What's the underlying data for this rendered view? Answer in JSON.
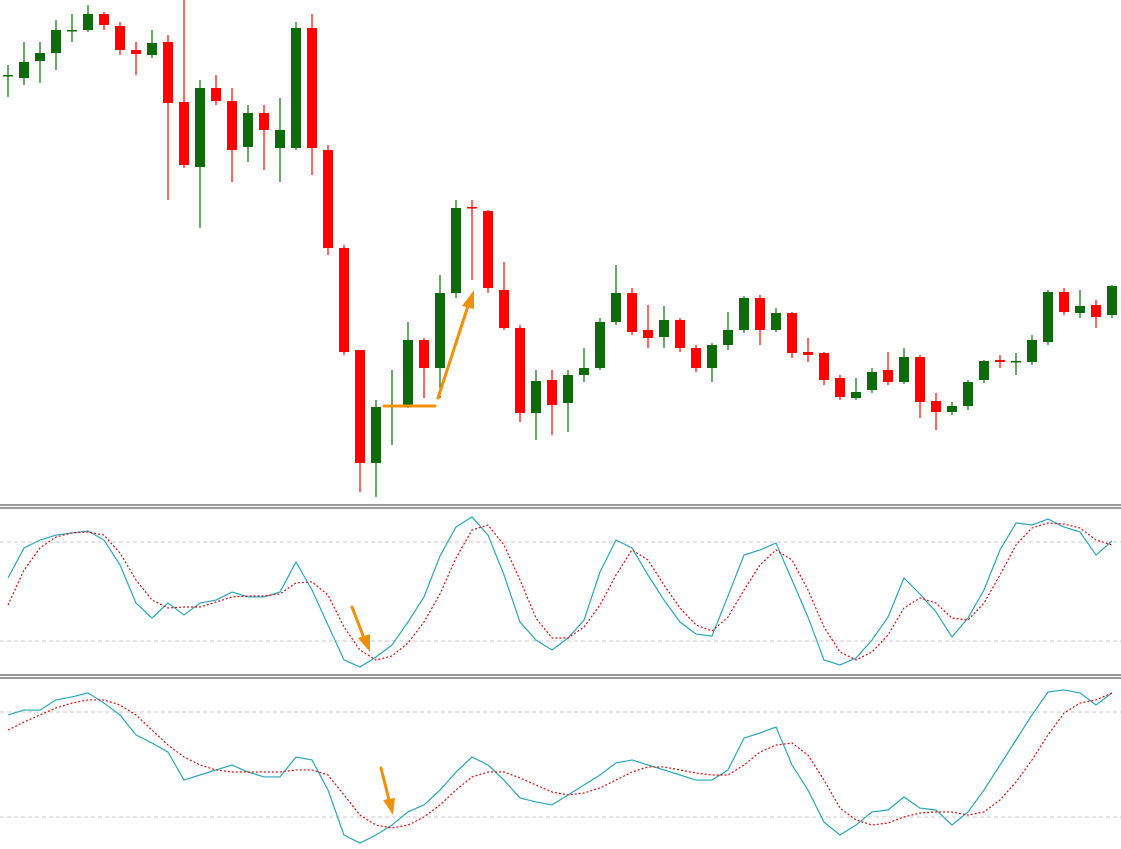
{
  "chart_data": [
    {
      "type": "candlestick",
      "up_color": "#0b6b0b",
      "down_color": "#ff0000",
      "ylim": [
        0,
        500
      ],
      "open": [
        424,
        422,
        439,
        447,
        469,
        470,
        486,
        474,
        450,
        445,
        458,
        398,
        333,
        412,
        399,
        353,
        387,
        352,
        352,
        472,
        350,
        252,
        150,
        37,
        93,
        95,
        160,
        132,
        207,
        293,
        289,
        210,
        172,
        87,
        120,
        97,
        125,
        132,
        178,
        207,
        170,
        163,
        180,
        152,
        132,
        155,
        170,
        202,
        170,
        187,
        148,
        147,
        122,
        102,
        110,
        130,
        118,
        143,
        99,
        88,
        94,
        120,
        140,
        138,
        138,
        158,
        208,
        187,
        195,
        185
      ],
      "high": [
        435,
        458,
        458,
        480,
        486,
        495,
        488,
        478,
        458,
        470,
        465,
        500,
        420,
        425,
        412,
        395,
        395,
        402,
        478,
        486,
        355,
        255,
        150,
        100,
        130,
        178,
        162,
        225,
        300,
        300,
        290,
        238,
        175,
        130,
        130,
        130,
        152,
        182,
        235,
        212,
        195,
        194,
        182,
        155,
        157,
        188,
        204,
        205,
        192,
        188,
        162,
        148,
        125,
        122,
        132,
        148,
        152,
        145,
        107,
        98,
        120,
        140,
        145,
        147,
        165,
        210,
        212,
        210,
        200,
        215
      ],
      "low": [
        403,
        415,
        417,
        430,
        458,
        468,
        470,
        445,
        425,
        442,
        300,
        332,
        272,
        395,
        318,
        338,
        330,
        318,
        350,
        325,
        245,
        145,
        8,
        3,
        55,
        92,
        102,
        102,
        202,
        220,
        207,
        170,
        78,
        60,
        65,
        68,
        118,
        130,
        175,
        165,
        152,
        152,
        148,
        128,
        118,
        150,
        167,
        155,
        168,
        142,
        138,
        115,
        100,
        100,
        107,
        115,
        116,
        82,
        70,
        85,
        90,
        117,
        132,
        125,
        135,
        155,
        185,
        182,
        172,
        182
      ],
      "close": [
        425,
        438,
        447,
        470,
        470,
        486,
        475,
        450,
        446,
        457,
        397,
        335,
        412,
        399,
        350,
        387,
        370,
        370,
        472,
        352,
        252,
        148,
        37,
        93,
        94,
        160,
        132,
        207,
        292,
        292,
        212,
        172,
        87,
        119,
        95,
        125,
        132,
        178,
        207,
        168,
        162,
        180,
        152,
        132,
        155,
        170,
        202,
        170,
        187,
        147,
        145,
        120,
        103,
        108,
        128,
        118,
        143,
        98,
        88,
        94,
        118,
        139,
        138,
        139,
        160,
        208,
        188,
        194,
        183,
        214
      ]
    },
    {
      "type": "line",
      "ylim": [
        0,
        100
      ],
      "levels": [
        20,
        80
      ],
      "level_color": "#c8c8c8",
      "series": [
        {
          "color": "#2aa6b8",
          "style": "solid",
          "values": [
            58.2,
            76.4,
            81.2,
            84.2,
            85.5,
            86.7,
            81.2,
            66.1,
            43.0,
            33.9,
            43.0,
            35.8,
            43.0,
            44.8,
            49.7,
            46.7,
            46.7,
            49.7,
            67.9,
            50.9,
            29.7,
            8.5,
            4.2,
            10.3,
            17.6,
            31.5,
            46.7,
            71.5,
            89.1,
            95.2,
            84.2,
            60.0,
            31.5,
            20.6,
            14.5,
            21.8,
            32.7,
            61.8,
            81.2,
            76.4,
            60.0,
            44.8,
            31.5,
            24.2,
            23.0,
            47.3,
            72.1,
            75.2,
            79.4,
            57.0,
            34.5,
            8.5,
            5.5,
            9.7,
            20.6,
            34.5,
            58.2,
            48.5,
            37.6,
            22.4,
            33.9,
            50.9,
            75.2,
            91.5,
            90.3,
            93.9,
            89.1,
            86.1,
            72.1,
            80.6
          ]
        },
        {
          "color": "#d01010",
          "style": "dotted",
          "values": [
            41.8,
            63.0,
            76.4,
            83.0,
            85.5,
            86.1,
            84.2,
            73.3,
            57.0,
            44.8,
            40.0,
            40.6,
            40.6,
            43.6,
            46.7,
            47.3,
            47.3,
            48.5,
            55.2,
            55.8,
            47.9,
            28.5,
            14.5,
            8.5,
            10.9,
            18.8,
            31.5,
            48.5,
            70.3,
            87.3,
            90.3,
            78.2,
            57.0,
            33.9,
            21.8,
            21.8,
            28.5,
            41.8,
            60.0,
            75.2,
            69.1,
            53.9,
            40.0,
            29.7,
            26.1,
            34.5,
            50.9,
            66.1,
            75.2,
            69.1,
            50.9,
            28.5,
            13.3,
            8.5,
            13.3,
            23.6,
            40.0,
            46.1,
            43.0,
            33.9,
            32.7,
            43.0,
            60.0,
            78.2,
            88.5,
            91.5,
            90.9,
            88.5,
            81.2,
            78.2
          ]
        }
      ]
    },
    {
      "type": "line",
      "ylim": [
        0,
        100
      ],
      "levels": [
        20,
        80
      ],
      "level_color": "#c8c8c8",
      "series": [
        {
          "color": "#2aa6b8",
          "style": "solid",
          "values": [
            78.3,
            81.1,
            81.1,
            86.9,
            88.6,
            90.9,
            85.1,
            78.3,
            66.9,
            62.3,
            57.1,
            41.1,
            44.0,
            46.9,
            49.7,
            45.7,
            42.9,
            42.9,
            54.3,
            52.6,
            35.4,
            9.7,
            5.1,
            9.7,
            15.4,
            22.9,
            26.9,
            35.4,
            45.7,
            54.3,
            49.7,
            41.1,
            30.9,
            28.6,
            26.9,
            32.6,
            38.3,
            44.0,
            50.9,
            52.6,
            49.7,
            46.9,
            44.0,
            41.1,
            41.1,
            46.9,
            65.1,
            68.0,
            71.4,
            49.7,
            35.4,
            17.1,
            9.7,
            15.4,
            22.9,
            24.0,
            31.4,
            25.1,
            24.0,
            15.4,
            22.9,
            35.4,
            49.7,
            64.0,
            78.3,
            91.4,
            92.6,
            90.9,
            84.0,
            90.9
          ]
        },
        {
          "color": "#d01010",
          "style": "dotted",
          "values": [
            69.7,
            74.3,
            78.3,
            82.3,
            85.1,
            86.9,
            86.9,
            84.0,
            78.3,
            69.7,
            61.1,
            54.3,
            49.7,
            46.9,
            45.7,
            45.7,
            45.7,
            45.7,
            46.9,
            46.9,
            44.0,
            32.6,
            21.1,
            15.4,
            13.7,
            15.4,
            20.0,
            26.9,
            35.4,
            42.9,
            45.7,
            45.7,
            42.3,
            38.3,
            34.3,
            32.6,
            33.7,
            36.6,
            41.1,
            45.7,
            48.6,
            48.6,
            46.9,
            45.1,
            44.0,
            44.0,
            49.7,
            57.1,
            61.1,
            62.3,
            55.4,
            41.1,
            25.1,
            18.3,
            15.4,
            16.6,
            20.0,
            22.3,
            22.9,
            22.9,
            21.1,
            22.9,
            29.7,
            40.0,
            52.6,
            66.9,
            79.4,
            85.1,
            86.9,
            90.9
          ]
        }
      ]
    }
  ]
}
